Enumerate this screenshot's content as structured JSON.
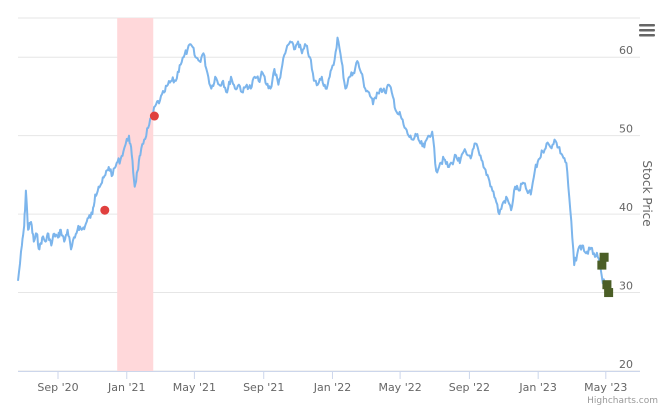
{
  "chart_data": {
    "type": "line",
    "title": "",
    "xlabel": "",
    "ylabel": "Stock Price",
    "y_axis_side": "right",
    "ylim": [
      20,
      65
    ],
    "yticks": [
      20,
      30,
      40,
      50,
      60
    ],
    "xlim": [
      "2020-06-22",
      "2023-05-12"
    ],
    "xticks": [
      {
        "date": "2020-09-01",
        "label": "Sep '20"
      },
      {
        "date": "2021-01-01",
        "label": "Jan '21"
      },
      {
        "date": "2021-05-01",
        "label": "May '21"
      },
      {
        "date": "2021-09-01",
        "label": "Sep '21"
      },
      {
        "date": "2022-01-01",
        "label": "Jan '22"
      },
      {
        "date": "2022-05-01",
        "label": "May '22"
      },
      {
        "date": "2022-09-01",
        "label": "Sep '22"
      },
      {
        "date": "2023-01-01",
        "label": "Jan '23"
      },
      {
        "date": "2023-05-01",
        "label": "May '23"
      }
    ],
    "grid": true,
    "colors": {
      "line": "#7cb5ec",
      "band": "#ffd8da",
      "red_marker": "#e0403e",
      "green_marker": "#4b5e26",
      "grid": "#e6e6e6"
    },
    "band": {
      "from": "2020-12-15",
      "to": "2021-02-17"
    },
    "series": [
      {
        "type": "line",
        "points": [
          [
            "2020-06-22",
            31.5
          ],
          [
            "2020-06-29",
            36.0
          ],
          [
            "2020-07-03",
            38.5
          ],
          [
            "2020-07-06",
            43.0
          ],
          [
            "2020-07-10",
            38.0
          ],
          [
            "2020-07-15",
            39.0
          ],
          [
            "2020-07-20",
            36.5
          ],
          [
            "2020-07-25",
            37.5
          ],
          [
            "2020-07-30",
            35.5
          ],
          [
            "2020-08-04",
            37.0
          ],
          [
            "2020-08-10",
            36.5
          ],
          [
            "2020-08-15",
            37.5
          ],
          [
            "2020-08-20",
            36.0
          ],
          [
            "2020-08-25",
            37.5
          ],
          [
            "2020-09-01",
            37.0
          ],
          [
            "2020-09-06",
            38.0
          ],
          [
            "2020-09-12",
            36.5
          ],
          [
            "2020-09-18",
            38.0
          ],
          [
            "2020-09-24",
            35.5
          ],
          [
            "2020-10-01",
            37.0
          ],
          [
            "2020-10-07",
            38.5
          ],
          [
            "2020-10-13",
            38.0
          ],
          [
            "2020-10-19",
            38.5
          ],
          [
            "2020-10-25",
            39.5
          ],
          [
            "2020-11-01",
            40.0
          ],
          [
            "2020-11-06",
            42.5
          ],
          [
            "2020-11-12",
            43.5
          ],
          [
            "2020-11-18",
            44.0
          ],
          [
            "2020-11-24",
            45.0
          ],
          [
            "2020-11-30",
            46.0
          ],
          [
            "2020-12-07",
            45.0
          ],
          [
            "2020-12-14",
            46.5
          ],
          [
            "2020-12-21",
            47.0
          ],
          [
            "2020-12-28",
            48.5
          ],
          [
            "2021-01-05",
            50.0
          ],
          [
            "2021-01-10",
            47.5
          ],
          [
            "2021-01-15",
            43.5
          ],
          [
            "2021-01-20",
            45.5
          ],
          [
            "2021-01-25",
            47.5
          ],
          [
            "2021-02-01",
            49.5
          ],
          [
            "2021-02-08",
            51.0
          ],
          [
            "2021-02-15",
            52.5
          ],
          [
            "2021-02-22",
            54.0
          ],
          [
            "2021-03-01",
            54.5
          ],
          [
            "2021-03-08",
            55.5
          ],
          [
            "2021-03-15",
            56.5
          ],
          [
            "2021-03-22",
            57.0
          ],
          [
            "2021-03-29",
            57.0
          ],
          [
            "2021-04-05",
            59.0
          ],
          [
            "2021-04-12",
            60.0
          ],
          [
            "2021-04-19",
            61.0
          ],
          [
            "2021-04-26",
            61.5
          ],
          [
            "2021-05-03",
            60.0
          ],
          [
            "2021-05-10",
            59.5
          ],
          [
            "2021-05-17",
            60.5
          ],
          [
            "2021-05-24",
            58.0
          ],
          [
            "2021-05-31",
            56.0
          ],
          [
            "2021-06-07",
            57.5
          ],
          [
            "2021-06-14",
            56.5
          ],
          [
            "2021-06-21",
            57.0
          ],
          [
            "2021-06-28",
            55.5
          ],
          [
            "2021-07-05",
            57.5
          ],
          [
            "2021-07-12",
            56.0
          ],
          [
            "2021-07-19",
            56.5
          ],
          [
            "2021-07-26",
            55.5
          ],
          [
            "2021-08-02",
            56.5
          ],
          [
            "2021-08-09",
            56.0
          ],
          [
            "2021-08-16",
            57.5
          ],
          [
            "2021-08-23",
            57.0
          ],
          [
            "2021-08-30",
            58.0
          ],
          [
            "2021-09-06",
            56.5
          ],
          [
            "2021-09-13",
            56.0
          ],
          [
            "2021-09-20",
            58.5
          ],
          [
            "2021-09-27",
            56.5
          ],
          [
            "2021-10-04",
            59.0
          ],
          [
            "2021-10-11",
            61.0
          ],
          [
            "2021-10-18",
            62.0
          ],
          [
            "2021-10-25",
            61.0
          ],
          [
            "2021-11-01",
            62.0
          ],
          [
            "2021-11-08",
            60.5
          ],
          [
            "2021-11-15",
            61.5
          ],
          [
            "2021-11-22",
            60.0
          ],
          [
            "2021-11-29",
            57.0
          ],
          [
            "2021-12-06",
            56.5
          ],
          [
            "2021-12-13",
            57.5
          ],
          [
            "2021-12-20",
            56.0
          ],
          [
            "2021-12-27",
            57.5
          ],
          [
            "2022-01-03",
            59.0
          ],
          [
            "2022-01-10",
            62.5
          ],
          [
            "2022-01-17",
            59.5
          ],
          [
            "2022-01-24",
            56.0
          ],
          [
            "2022-01-31",
            57.5
          ],
          [
            "2022-02-07",
            58.0
          ],
          [
            "2022-02-14",
            59.5
          ],
          [
            "2022-02-21",
            58.0
          ],
          [
            "2022-02-28",
            56.0
          ],
          [
            "2022-03-07",
            55.5
          ],
          [
            "2022-03-14",
            54.0
          ],
          [
            "2022-03-21",
            55.5
          ],
          [
            "2022-03-28",
            56.0
          ],
          [
            "2022-04-04",
            55.5
          ],
          [
            "2022-04-11",
            56.5
          ],
          [
            "2022-04-18",
            55.0
          ],
          [
            "2022-04-25",
            53.0
          ],
          [
            "2022-05-02",
            52.5
          ],
          [
            "2022-05-09",
            51.0
          ],
          [
            "2022-05-16",
            50.0
          ],
          [
            "2022-05-23",
            49.5
          ],
          [
            "2022-05-30",
            50.0
          ],
          [
            "2022-06-06",
            49.0
          ],
          [
            "2022-06-13",
            48.5
          ],
          [
            "2022-06-20",
            50.0
          ],
          [
            "2022-06-27",
            50.5
          ],
          [
            "2022-07-04",
            45.5
          ],
          [
            "2022-07-11",
            46.5
          ],
          [
            "2022-07-18",
            47.0
          ],
          [
            "2022-07-25",
            46.0
          ],
          [
            "2022-08-01",
            46.5
          ],
          [
            "2022-08-08",
            47.5
          ],
          [
            "2022-08-15",
            46.5
          ],
          [
            "2022-08-22",
            48.0
          ],
          [
            "2022-08-29",
            47.5
          ],
          [
            "2022-09-05",
            47.5
          ],
          [
            "2022-09-12",
            49.0
          ],
          [
            "2022-09-19",
            47.5
          ],
          [
            "2022-09-26",
            46.0
          ],
          [
            "2022-10-03",
            45.0
          ],
          [
            "2022-10-10",
            43.5
          ],
          [
            "2022-10-17",
            42.0
          ],
          [
            "2022-10-24",
            40.0
          ],
          [
            "2022-10-31",
            41.5
          ],
          [
            "2022-11-07",
            42.0
          ],
          [
            "2022-11-14",
            40.5
          ],
          [
            "2022-11-21",
            43.5
          ],
          [
            "2022-11-28",
            43.0
          ],
          [
            "2022-12-05",
            44.0
          ],
          [
            "2022-12-12",
            43.0
          ],
          [
            "2022-12-19",
            42.5
          ],
          [
            "2022-12-26",
            45.5
          ],
          [
            "2023-01-02",
            47.0
          ],
          [
            "2023-01-09",
            48.0
          ],
          [
            "2023-01-16",
            49.0
          ],
          [
            "2023-01-23",
            48.5
          ],
          [
            "2023-01-30",
            49.5
          ],
          [
            "2023-02-06",
            48.5
          ],
          [
            "2023-02-13",
            47.5
          ],
          [
            "2023-02-20",
            46.5
          ],
          [
            "2023-02-27",
            40.5
          ],
          [
            "2023-03-06",
            33.5
          ],
          [
            "2023-03-13",
            35.5
          ],
          [
            "2023-03-20",
            36.0
          ],
          [
            "2023-03-27",
            35.0
          ],
          [
            "2023-04-03",
            35.5
          ],
          [
            "2023-04-10",
            35.0
          ],
          [
            "2023-04-17",
            34.5
          ],
          [
            "2023-04-24",
            32.0
          ],
          [
            "2023-05-01",
            30.5
          ],
          [
            "2023-05-08",
            29.5
          ]
        ]
      }
    ],
    "markers": {
      "red_circles": [
        {
          "date": "2020-11-23",
          "value": 40.5
        },
        {
          "date": "2021-02-19",
          "value": 52.5
        }
      ],
      "green_squares": [
        {
          "date": "2023-04-24",
          "value": 33.5
        },
        {
          "date": "2023-04-28",
          "value": 34.5
        },
        {
          "date": "2023-05-03",
          "value": 31.0
        },
        {
          "date": "2023-05-06",
          "value": 30.0
        }
      ]
    }
  },
  "credits": "Highcharts.com",
  "menu_icon": "hamburger-menu-icon"
}
